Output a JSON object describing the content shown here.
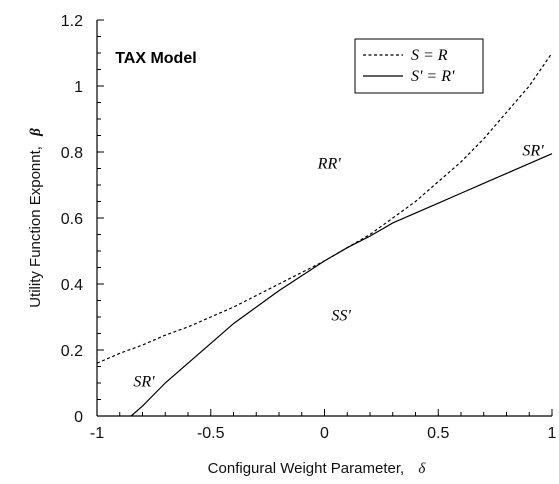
{
  "chart_data": {
    "type": "line",
    "title": "TAX Model",
    "xlabel": "Configural Weight Parameter,",
    "xlabel_symbol": "δ",
    "ylabel": "Utility Function Exponnt,",
    "ylabel_symbol": "β",
    "xlim": [
      -1,
      1
    ],
    "ylim": [
      0,
      1.2
    ],
    "x_ticks": [
      "-1",
      "-0.5",
      "0",
      "0.5",
      "1"
    ],
    "y_ticks": [
      "0",
      "0.2",
      "0.4",
      "0.6",
      "0.8",
      "1",
      "1.2"
    ],
    "grid": false,
    "legend_position": "top-right",
    "series": [
      {
        "name": "S = R",
        "style": "dashed",
        "color": "#000000",
        "x": [
          -1,
          -0.9,
          -0.8,
          -0.7,
          -0.6,
          -0.5,
          -0.4,
          -0.3,
          -0.2,
          -0.1,
          0,
          0.1,
          0.2,
          0.3,
          0.4,
          0.5,
          0.6,
          0.7,
          0.8,
          0.9,
          1
        ],
        "y": [
          0.16,
          0.19,
          0.215,
          0.245,
          0.27,
          0.3,
          0.33,
          0.365,
          0.4,
          0.435,
          0.47,
          0.51,
          0.55,
          0.6,
          0.65,
          0.71,
          0.77,
          0.84,
          0.92,
          1.0,
          1.1
        ]
      },
      {
        "name": "S' = R'",
        "style": "solid",
        "color": "#000000",
        "x": [
          -0.85,
          -0.8,
          -0.7,
          -0.6,
          -0.5,
          -0.4,
          -0.3,
          -0.2,
          -0.1,
          0,
          0.1,
          0.2,
          0.3,
          0.4,
          0.5,
          0.6,
          0.7,
          0.8,
          0.9,
          1
        ],
        "y": [
          0.0,
          0.03,
          0.1,
          0.16,
          0.22,
          0.28,
          0.33,
          0.38,
          0.425,
          0.47,
          0.51,
          0.545,
          0.585,
          0.615,
          0.645,
          0.675,
          0.705,
          0.735,
          0.765,
          0.795
        ]
      }
    ],
    "annotations": [
      {
        "text": "TAX Model",
        "x": -0.92,
        "y": 1.07,
        "kind": "title"
      },
      {
        "text": "RR'",
        "x": -0.03,
        "y": 0.75,
        "kind": "region"
      },
      {
        "text": "SR'",
        "x": 0.87,
        "y": 0.79,
        "kind": "region"
      },
      {
        "text": "SS'",
        "x": 0.03,
        "y": 0.29,
        "kind": "region"
      },
      {
        "text": "SR'",
        "x": -0.84,
        "y": 0.09,
        "kind": "region"
      }
    ]
  }
}
